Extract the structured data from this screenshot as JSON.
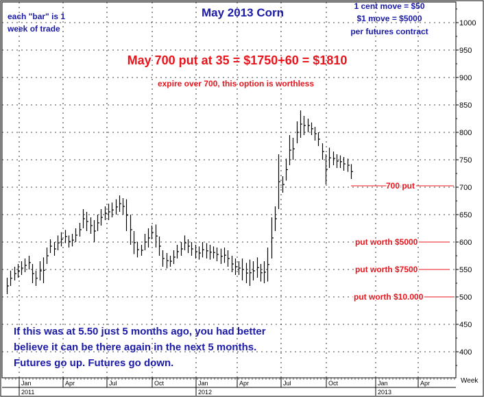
{
  "chart_data": {
    "type": "ohlc-bar",
    "title": "May 2013 Corn",
    "x_unit_label": "Week",
    "ylim": [
      360,
      1030
    ],
    "y_ticks": [
      400,
      450,
      500,
      550,
      600,
      650,
      700,
      750,
      800,
      850,
      900,
      950,
      1000
    ],
    "month_labels": [
      "Jan",
      "Apr",
      "Jul",
      "Oct",
      "Jan",
      "Apr",
      "Jul",
      "Oct",
      "Jan",
      "Apr"
    ],
    "year_labels": [
      "2011",
      "2012",
      "2013"
    ],
    "grid": true,
    "series": [
      {
        "values": [
          {
            "h": 535,
            "l": 505
          },
          {
            "h": 548,
            "l": 520
          },
          {
            "h": 555,
            "l": 530
          },
          {
            "h": 560,
            "l": 535
          },
          {
            "h": 565,
            "l": 540
          },
          {
            "h": 570,
            "l": 545
          },
          {
            "h": 575,
            "l": 550
          },
          {
            "h": 560,
            "l": 525
          },
          {
            "h": 548,
            "l": 520
          },
          {
            "h": 565,
            "l": 530
          },
          {
            "h": 572,
            "l": 525
          },
          {
            "h": 590,
            "l": 560
          },
          {
            "h": 605,
            "l": 580
          },
          {
            "h": 600,
            "l": 575
          },
          {
            "h": 612,
            "l": 585
          },
          {
            "h": 618,
            "l": 592
          },
          {
            "h": 622,
            "l": 598
          },
          {
            "h": 612,
            "l": 590
          },
          {
            "h": 615,
            "l": 592
          },
          {
            "h": 625,
            "l": 600
          },
          {
            "h": 635,
            "l": 610
          },
          {
            "h": 660,
            "l": 625
          },
          {
            "h": 655,
            "l": 620
          },
          {
            "h": 645,
            "l": 615
          },
          {
            "h": 640,
            "l": 600
          },
          {
            "h": 650,
            "l": 620
          },
          {
            "h": 660,
            "l": 630
          },
          {
            "h": 665,
            "l": 640
          },
          {
            "h": 670,
            "l": 640
          },
          {
            "h": 672,
            "l": 645
          },
          {
            "h": 678,
            "l": 650
          },
          {
            "h": 685,
            "l": 655
          },
          {
            "h": 680,
            "l": 650
          },
          {
            "h": 678,
            "l": 620
          },
          {
            "h": 650,
            "l": 595
          },
          {
            "h": 620,
            "l": 578
          },
          {
            "h": 600,
            "l": 572
          },
          {
            "h": 595,
            "l": 575
          },
          {
            "h": 615,
            "l": 585
          },
          {
            "h": 625,
            "l": 590
          },
          {
            "h": 630,
            "l": 605
          },
          {
            "h": 632,
            "l": 590
          },
          {
            "h": 610,
            "l": 575
          },
          {
            "h": 585,
            "l": 555
          },
          {
            "h": 580,
            "l": 552
          },
          {
            "h": 575,
            "l": 555
          },
          {
            "h": 585,
            "l": 560
          },
          {
            "h": 595,
            "l": 570
          },
          {
            "h": 600,
            "l": 575
          },
          {
            "h": 612,
            "l": 585
          },
          {
            "h": 605,
            "l": 580
          },
          {
            "h": 600,
            "l": 575
          },
          {
            "h": 595,
            "l": 570
          },
          {
            "h": 592,
            "l": 568
          },
          {
            "h": 600,
            "l": 572
          },
          {
            "h": 598,
            "l": 570
          },
          {
            "h": 595,
            "l": 568
          },
          {
            "h": 592,
            "l": 570
          },
          {
            "h": 590,
            "l": 565
          },
          {
            "h": 588,
            "l": 560
          },
          {
            "h": 590,
            "l": 562
          },
          {
            "h": 585,
            "l": 555
          },
          {
            "h": 575,
            "l": 545
          },
          {
            "h": 570,
            "l": 540
          },
          {
            "h": 565,
            "l": 540
          },
          {
            "h": 570,
            "l": 530
          },
          {
            "h": 562,
            "l": 525
          },
          {
            "h": 568,
            "l": 520
          },
          {
            "h": 565,
            "l": 530
          },
          {
            "h": 572,
            "l": 535
          },
          {
            "h": 560,
            "l": 528
          },
          {
            "h": 565,
            "l": 525
          },
          {
            "h": 590,
            "l": 528
          },
          {
            "h": 645,
            "l": 570
          },
          {
            "h": 665,
            "l": 620
          },
          {
            "h": 760,
            "l": 660
          },
          {
            "h": 720,
            "l": 690
          },
          {
            "h": 752,
            "l": 712
          },
          {
            "h": 795,
            "l": 740
          },
          {
            "h": 790,
            "l": 750
          },
          {
            "h": 820,
            "l": 780
          },
          {
            "h": 840,
            "l": 790
          },
          {
            "h": 830,
            "l": 795
          },
          {
            "h": 825,
            "l": 800
          },
          {
            "h": 818,
            "l": 795
          },
          {
            "h": 810,
            "l": 785
          },
          {
            "h": 800,
            "l": 775
          },
          {
            "h": 780,
            "l": 750
          },
          {
            "h": 760,
            "l": 705
          },
          {
            "h": 772,
            "l": 735
          },
          {
            "h": 765,
            "l": 740
          },
          {
            "h": 760,
            "l": 735
          },
          {
            "h": 758,
            "l": 735
          },
          {
            "h": 755,
            "l": 730
          },
          {
            "h": 752,
            "l": 728
          },
          {
            "h": 742,
            "l": 715
          }
        ]
      }
    ]
  },
  "annotations": {
    "bar_note_line1": "each \"bar\" is 1",
    "bar_note_line2": "week of trade",
    "move_line1": "1 cent move = $50",
    "move_line2": "$1 move = $5000",
    "move_line3": "per futures contract",
    "put_headline": "May 700 put at 35 = $1750+60 = $1810",
    "expire_note": "expire over 700, this option is worthless",
    "put_700": "700 put",
    "put_5000": "put worth $5000",
    "put_7500": "put worth $7500",
    "put_10000": "put worth $10.000",
    "bottom_line1": "If this was at 5.50 just 5 months ago, you had better",
    "bottom_line2": "believe it can be there again in the next 5 months.",
    "bottom_line3": "Futures go up. Futures go down."
  },
  "colors": {
    "title": "#1a1aa6",
    "red": "#e8141c",
    "blue_text": "#1a1aa6",
    "bars": "#000000",
    "grid": "#000000"
  }
}
